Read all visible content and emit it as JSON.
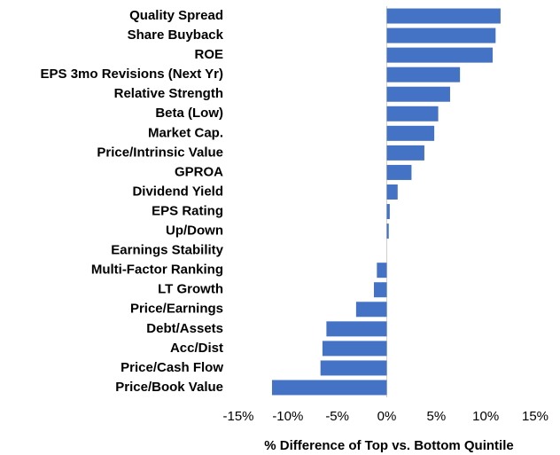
{
  "chart_data": {
    "type": "barh",
    "x_label": "% Difference of Top vs. Bottom Quintile",
    "categories": [
      "Quality Spread",
      "Share Buyback",
      "ROE",
      "EPS 3mo Revisions (Next Yr)",
      "Relative Strength",
      "Beta (Low)",
      "Market Cap.",
      "Price/Intrinsic Value",
      "GPROA",
      "Dividend Yield",
      "EPS Rating",
      "Up/Down",
      "Earnings Stability",
      "Multi-Factor Ranking",
      "LT Growth",
      "Price/Earnings",
      "Debt/Assets",
      "Acc/Dist",
      "Price/Cash Flow",
      "Price/Book Value"
    ],
    "values": [
      11.5,
      11.0,
      10.7,
      7.4,
      6.4,
      5.2,
      4.8,
      3.8,
      2.5,
      1.1,
      0.3,
      0.2,
      0,
      -1.0,
      -1.3,
      -3.1,
      -6.1,
      -6.5,
      -6.7,
      -11.6
    ],
    "color": "#4472c4",
    "xlim": [
      -15,
      15
    ],
    "xticks": [
      {
        "value": -15,
        "label": "-15%"
      },
      {
        "value": -10,
        "label": "-10%"
      },
      {
        "value": -5,
        "label": "-5%"
      },
      {
        "value": 0,
        "label": "0%"
      },
      {
        "value": 5,
        "label": "5%"
      },
      {
        "value": 10,
        "label": "10%"
      },
      {
        "value": 15,
        "label": "15%"
      }
    ]
  }
}
